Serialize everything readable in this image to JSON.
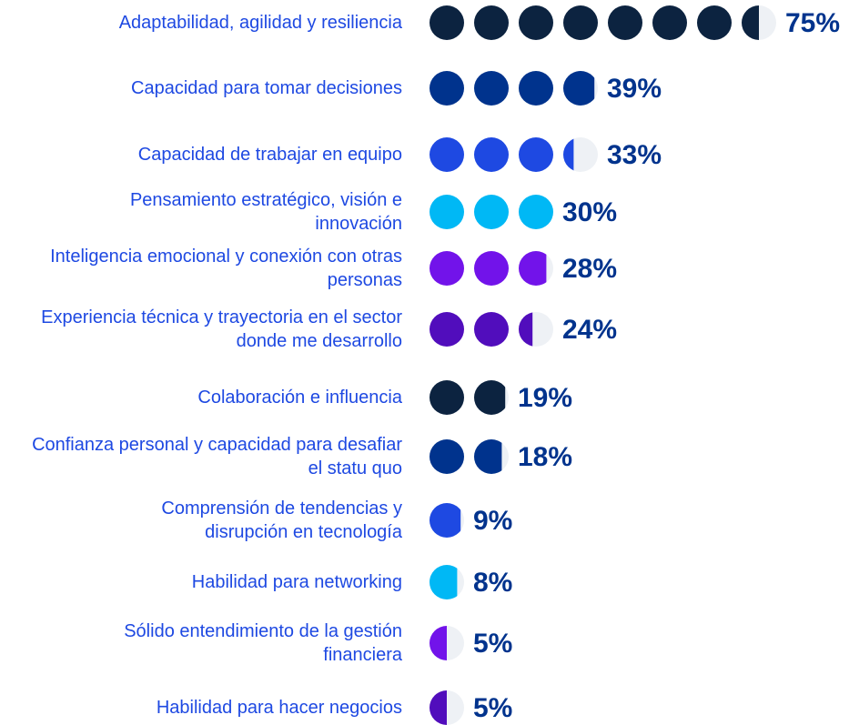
{
  "chart_data": {
    "type": "pictograph",
    "categories": [
      "Adaptabilidad, agilidad y resiliencia",
      "Capacidad para tomar decisiones",
      "Capacidad de trabajar en equipo",
      "Pensamiento estratégico, visión e innovación",
      "Inteligencia emocional y conexión con otras personas",
      "Experiencia técnica y trayectoria en el sector donde me desarrollo",
      "Colaboración e influencia",
      "Confianza personal y capacidad para desafiar el statu quo",
      "Comprensión de tendencias y disrupción en tecnología",
      "Habilidad para networking",
      "Sólido entendimiento de la gestión financiera",
      "Habilidad para hacer negocios"
    ],
    "values": [
      75,
      39,
      33,
      30,
      28,
      24,
      19,
      18,
      9,
      8,
      5,
      5
    ],
    "value_labels": [
      "75%",
      "39%",
      "33%",
      "30%",
      "28%",
      "24%",
      "19%",
      "18%",
      "9%",
      "8%",
      "5%",
      "5%"
    ],
    "colors": [
      "#0c2340",
      "#00338d",
      "#1e49e2",
      "#00b8f5",
      "#7213ea",
      "#510dbc",
      "#0c2340",
      "#00338d",
      "#1e49e2",
      "#00b8f5",
      "#7213ea",
      "#510dbc"
    ]
  }
}
